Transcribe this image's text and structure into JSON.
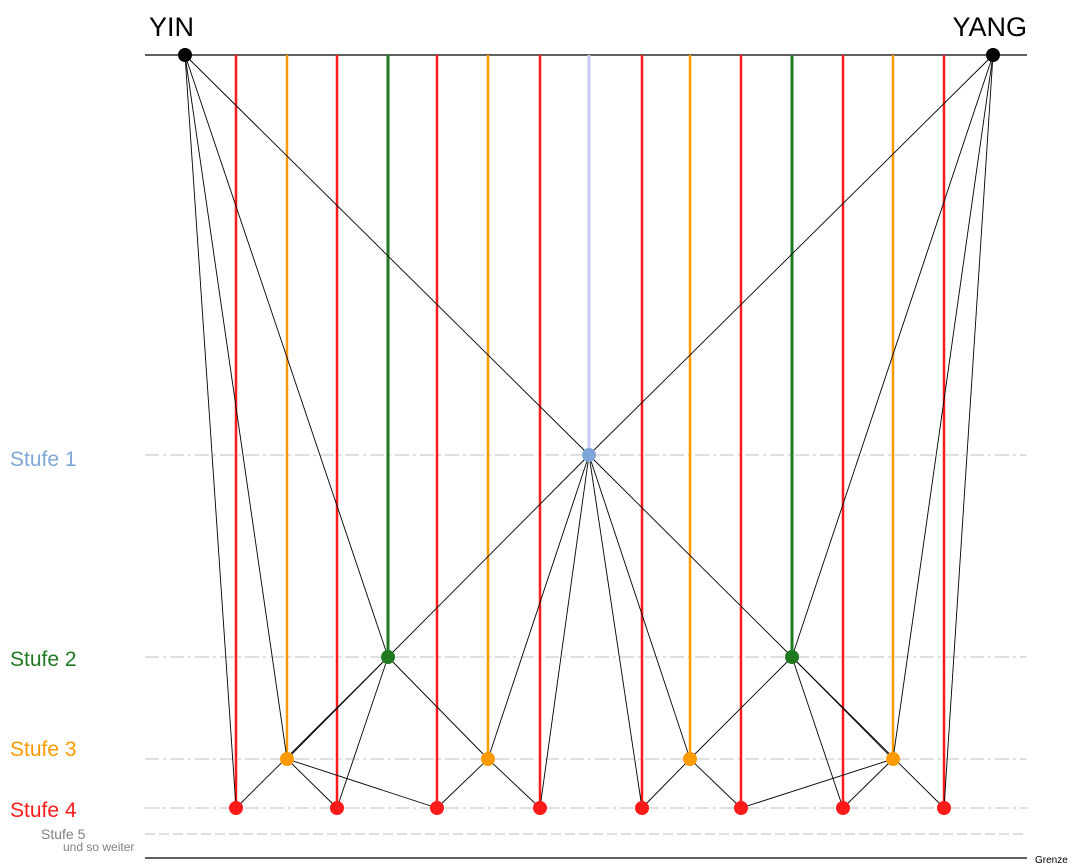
{
  "labels": {
    "yin": "YIN",
    "yang": "YANG",
    "stufe1": "Stufe 1",
    "stufe2": "Stufe 2",
    "stufe3": "Stufe 3",
    "stufe4": "Stufe 4",
    "stufe5": "Stufe 5",
    "und_so_weiter": "und so weiter",
    "grenze": "Grenze"
  },
  "colors": {
    "stufe1": "#7fa6d8",
    "stufe1_line": "#c7cdf2",
    "stufe2": "#1f7a1f",
    "stufe3": "#ff9900",
    "stufe4": "#ff1a1a",
    "poles": "#000000",
    "stufe5": "#808080",
    "guide": "#c0c0c0"
  }
}
